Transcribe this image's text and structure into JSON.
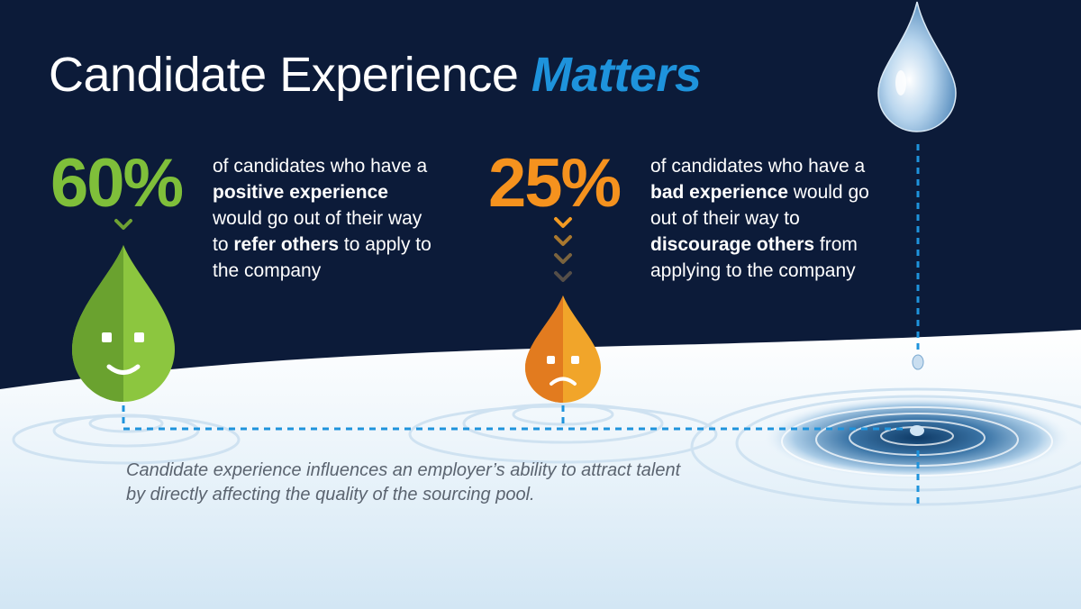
{
  "title": {
    "main": "Candidate Experience",
    "emphasis": "Matters"
  },
  "stats": [
    {
      "value": "60%",
      "text_1": "of candidates who have a ",
      "bold_1": "positive experience",
      "text_2": " would go out of their way to ",
      "bold_2": "refer others",
      "text_3": " to apply to the company",
      "color": "#7fbf3a",
      "mood": "smiling-face"
    },
    {
      "value": "25%",
      "text_1": "of candidates who have a ",
      "bold_1": "bad experience",
      "text_2": " would go out of their way to ",
      "bold_2": "discourage others",
      "text_3": " from applying to the company",
      "color": "#f5921e",
      "mood": "frowning-face"
    }
  ],
  "caption": "Candidate experience influences an employer’s ability to attract talent by directly affecting the quality of the sourcing pool.",
  "colors": {
    "background": "#0c1b39",
    "accent_blue": "#1e93dc",
    "water": "#e6f2fb"
  },
  "icons": [
    "green-drop-icon",
    "orange-drop-icon",
    "water-drop-icon",
    "chevron-down-icon"
  ]
}
